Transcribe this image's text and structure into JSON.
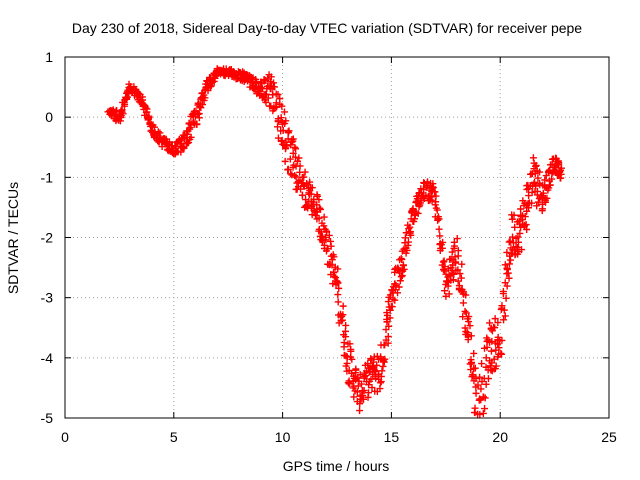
{
  "chart_data": {
    "type": "scatter",
    "title": "Day 230 of 2018, Sidereal Day-to-day VTEC variation (SDTVAR) for receiver pepe",
    "xlabel": "GPS time / hours",
    "ylabel": "SDTVAR / TECUs",
    "xlim": [
      0,
      25
    ],
    "ylim": [
      -5,
      1
    ],
    "xticks": [
      "0",
      "5",
      "10",
      "15",
      "20",
      "25"
    ],
    "yticks": [
      "1",
      "0",
      "-1",
      "-2",
      "-3",
      "-4",
      "-5"
    ],
    "grid": true,
    "marker": "plus",
    "color": "#ff0000",
    "series": [
      {
        "name": "pepe",
        "x": [
          2.0,
          2.5,
          3.0,
          3.5,
          4.0,
          4.5,
          5.0,
          5.5,
          6.0,
          6.5,
          7.0,
          7.5,
          8.0,
          8.5,
          9.0,
          9.5,
          10.0,
          10.5,
          11.0,
          11.5,
          12.0,
          12.5,
          13.0,
          13.5,
          14.0,
          14.5,
          15.0,
          15.5,
          16.0,
          16.5,
          17.0,
          17.5,
          18.0,
          18.5,
          19.0,
          19.5,
          20.0,
          20.5,
          21.0,
          21.5,
          22.0,
          22.5,
          22.8
        ],
        "y": [
          0.1,
          0.0,
          0.5,
          0.3,
          -0.2,
          -0.4,
          -0.55,
          -0.4,
          0.0,
          0.5,
          0.75,
          0.75,
          0.7,
          0.6,
          0.45,
          0.45,
          -0.2,
          -0.8,
          -1.2,
          -1.5,
          -2.0,
          -2.8,
          -4.0,
          -4.6,
          -4.3,
          -4.2,
          -3.0,
          -2.4,
          -1.6,
          -1.2,
          -1.3,
          -2.8,
          -2.3,
          -3.5,
          -4.9,
          -3.8,
          -3.7,
          -2.0,
          -1.8,
          -1.0,
          -1.3,
          -0.75,
          -0.95
        ],
        "spread": [
          0.05,
          0.1,
          0.08,
          0.08,
          0.08,
          0.1,
          0.08,
          0.15,
          0.2,
          0.12,
          0.06,
          0.06,
          0.08,
          0.1,
          0.15,
          0.3,
          0.4,
          0.4,
          0.3,
          0.3,
          0.3,
          0.3,
          0.4,
          0.3,
          0.3,
          0.4,
          0.3,
          0.25,
          0.2,
          0.15,
          0.2,
          0.3,
          0.35,
          0.4,
          0.5,
          0.5,
          0.4,
          0.4,
          0.4,
          0.4,
          0.3,
          0.15,
          0.1
        ]
      }
    ]
  }
}
